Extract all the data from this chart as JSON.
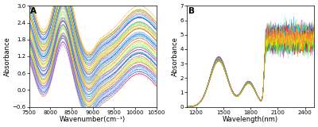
{
  "panel_A": {
    "label": "A",
    "xlabel": "Wavenumber(cm⁻¹)",
    "ylabel": "Absorbance",
    "xlim": [
      7500,
      10500
    ],
    "ylim": [
      -0.6,
      3.0
    ],
    "xticks": [
      7500,
      8000,
      8500,
      9000,
      9500,
      10000,
      10500
    ],
    "yticks": [
      -0.6,
      0.0,
      0.6,
      1.2,
      1.8,
      2.4,
      3.0
    ],
    "n_spectra": 80,
    "background_color": "#ffffff"
  },
  "panel_B": {
    "label": "B",
    "xlabel": "Wavelength(nm)",
    "ylabel": "Absorbance",
    "xlim": [
      1100,
      2500
    ],
    "ylim": [
      0,
      7
    ],
    "xticks": [
      1200,
      1500,
      1800,
      2100,
      2400
    ],
    "yticks": [
      0,
      1,
      2,
      3,
      4,
      5,
      6,
      7
    ],
    "n_spectra": 80,
    "background_color": "#ffffff"
  },
  "fig_background": "#ffffff",
  "tick_fontsize": 5.0,
  "label_fontsize": 6.0
}
